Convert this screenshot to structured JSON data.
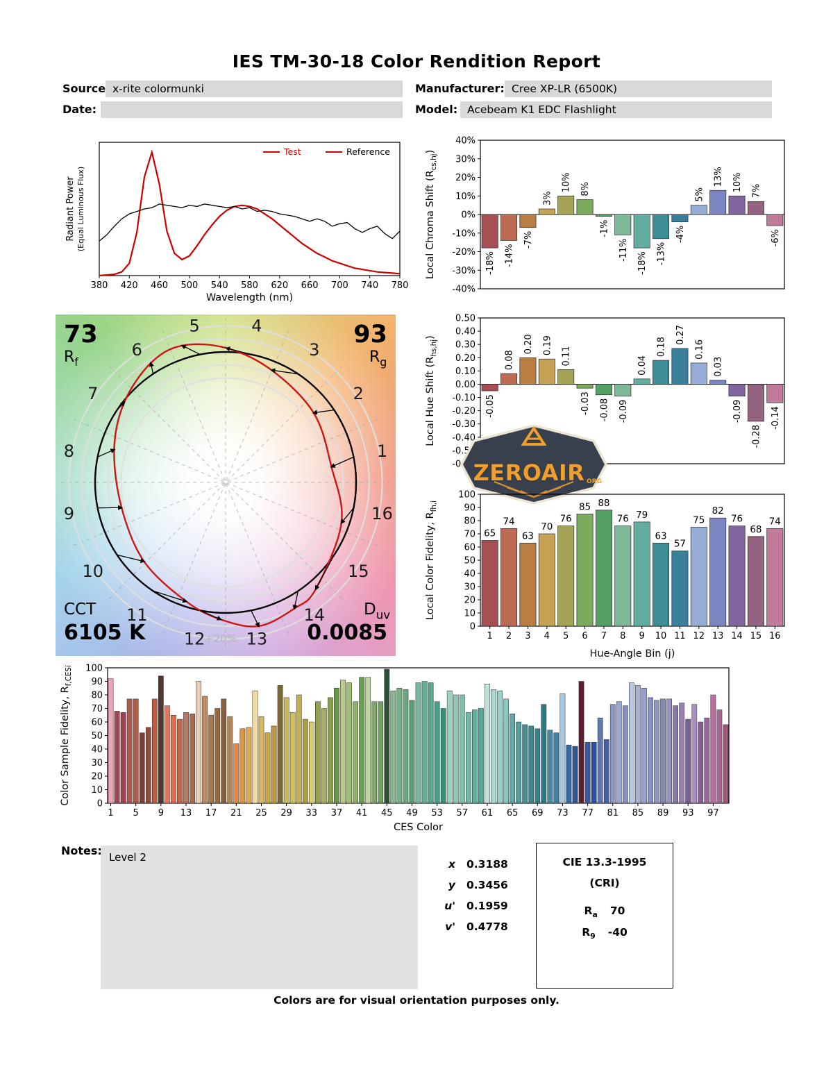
{
  "report": {
    "title": "IES TM-30-18 Color Rendition Report",
    "fields": {
      "source_label": "Source:",
      "source": "x-rite colormunki",
      "manufacturer_label": "Manufacturer:",
      "manufacturer": "Cree XP-LR (6500K)",
      "date_label": "Date:",
      "date": "",
      "model_label": "Model:",
      "model": "Acebeam K1 EDC Flashlight"
    },
    "watermark": {
      "name": "ZEROAIR",
      "tld": "ORG"
    },
    "notes_label": "Notes:",
    "notes": "Level 2",
    "chromaticity": [
      {
        "label": "x",
        "value": "0.3188"
      },
      {
        "label": "y",
        "value": "0.3456"
      },
      {
        "label": "u'",
        "value": "0.1959"
      },
      {
        "label": "v'",
        "value": "0.4778"
      }
    ],
    "cri": {
      "title": "CIE 13.3-1995",
      "subtitle": "(CRI)",
      "rows": [
        {
          "sym": "R",
          "sub": "a",
          "value": "70"
        },
        {
          "sym": "R",
          "sub": "9",
          "value": "-40"
        }
      ]
    },
    "footer": "Colors are for visual orientation purposes only."
  },
  "bin_colors": [
    "#a65055",
    "#bc6a52",
    "#b97e44",
    "#c5a156",
    "#a3a455",
    "#7cab5d",
    "#55a065",
    "#7db898",
    "#62ada0",
    "#3d8d96",
    "#3a7f9b",
    "#96aed6",
    "#7a85c1",
    "#80659f",
    "#93637f",
    "#c17b9b"
  ],
  "chart_data": [
    {
      "id": "spd",
      "type": "line",
      "xlabel": "Wavelength (nm)",
      "ylabel1": "Radiant Power",
      "ylabel2": "(Equal Luminous Flux)",
      "xlim": [
        380,
        780
      ],
      "xticks": [
        380,
        420,
        460,
        500,
        540,
        580,
        620,
        660,
        700,
        740,
        780
      ],
      "legend": [
        {
          "label": "Test",
          "line": "#cc0000",
          "text": "#cc0000"
        },
        {
          "label": "Reference",
          "line": "#cc0000",
          "text": "#000000"
        }
      ],
      "series": [
        {
          "name": "Test",
          "color": "#cc0000",
          "width": 2.2,
          "y": [
            0,
            0.005,
            0.01,
            0.03,
            0.1,
            0.35,
            0.8,
            1.0,
            0.74,
            0.36,
            0.18,
            0.13,
            0.16,
            0.24,
            0.33,
            0.41,
            0.48,
            0.53,
            0.56,
            0.57,
            0.56,
            0.54,
            0.5,
            0.46,
            0.41,
            0.36,
            0.31,
            0.26,
            0.22,
            0.18,
            0.15,
            0.12,
            0.1,
            0.08,
            0.06,
            0.05,
            0.04,
            0.03,
            0.025,
            0.02,
            0.015
          ]
        },
        {
          "name": "Reference",
          "color": "#000000",
          "width": 1.3,
          "y": [
            0.28,
            0.33,
            0.4,
            0.46,
            0.5,
            0.52,
            0.54,
            0.55,
            0.58,
            0.57,
            0.56,
            0.55,
            0.57,
            0.56,
            0.58,
            0.57,
            0.56,
            0.55,
            0.56,
            0.54,
            0.55,
            0.52,
            0.53,
            0.52,
            0.5,
            0.49,
            0.48,
            0.46,
            0.44,
            0.46,
            0.44,
            0.4,
            0.42,
            0.43,
            0.38,
            0.35,
            0.38,
            0.4,
            0.34,
            0.3,
            0.36
          ]
        }
      ]
    },
    {
      "id": "chroma_shift",
      "type": "bar",
      "ylabel": {
        "pre": "Local Chroma Shift (R",
        "sub": "cs,hj",
        "post": ")"
      },
      "ylim": [
        -40,
        40
      ],
      "yticks": [
        {
          "v": 40,
          "t": "40%"
        },
        {
          "v": 30,
          "t": "30%"
        },
        {
          "v": 20,
          "t": "20%"
        },
        {
          "v": 10,
          "t": "10%"
        },
        {
          "v": 0,
          "t": "0%"
        },
        {
          "v": -10,
          "t": "-10%"
        },
        {
          "v": -20,
          "t": "-20%"
        },
        {
          "v": -30,
          "t": "-30%"
        },
        {
          "v": -40,
          "t": "-40%"
        }
      ],
      "categories": [
        1,
        2,
        3,
        4,
        5,
        6,
        7,
        8,
        9,
        10,
        11,
        12,
        13,
        14,
        15,
        16
      ],
      "values": [
        -18,
        -14,
        -7,
        3,
        10,
        8,
        -1,
        -11,
        -18,
        -13,
        -4,
        5,
        13,
        10,
        7,
        -6
      ],
      "labels": [
        "-18%",
        "-14%",
        "-7%",
        "3%",
        "10%",
        "8%",
        "-1%",
        "-11%",
        "-18%",
        "-13%",
        "-4%",
        "5%",
        "13%",
        "10%",
        "7%",
        "-6%"
      ]
    },
    {
      "id": "hue_shift",
      "type": "bar",
      "ylabel": {
        "pre": "Local Hue Shift (R",
        "sub": "hs,hj",
        "post": ")"
      },
      "ylim": [
        -0.6,
        0.5
      ],
      "yticks": [
        {
          "v": 0.5,
          "t": "0.50"
        },
        {
          "v": 0.4,
          "t": "0.40"
        },
        {
          "v": 0.3,
          "t": "0.30"
        },
        {
          "v": 0.2,
          "t": "0.20"
        },
        {
          "v": 0.1,
          "t": "0.10"
        },
        {
          "v": 0,
          "t": "0.00"
        },
        {
          "v": -0.1,
          "t": "-0.10"
        },
        {
          "v": -0.2,
          "t": "-0.20"
        },
        {
          "v": -0.3,
          "t": "-0.30"
        },
        {
          "v": -0.4,
          "t": "-0.40"
        },
        {
          "v": -0.5,
          "t": "-0.50"
        },
        {
          "v": -0.6,
          "t": "-0.60"
        }
      ],
      "categories": [
        1,
        2,
        3,
        4,
        5,
        6,
        7,
        8,
        9,
        10,
        11,
        12,
        13,
        14,
        15,
        16
      ],
      "values": [
        -0.05,
        0.08,
        0.2,
        0.19,
        0.11,
        -0.03,
        -0.08,
        -0.09,
        0.04,
        0.18,
        0.27,
        0.16,
        0.03,
        -0.09,
        -0.28,
        -0.14
      ],
      "labels": [
        "-0.05",
        "0.08",
        "0.20",
        "0.19",
        "0.11",
        "-0.03",
        "-0.08",
        "-0.09",
        "0.04",
        "0.18",
        "0.27",
        "0.16",
        "0.03",
        "-0.09",
        "-0.28",
        "-0.14"
      ]
    },
    {
      "id": "local_fidelity",
      "type": "bar",
      "xlabel": "Hue-Angle Bin (j)",
      "ylabel": {
        "pre": "Local Color Fidelity, R",
        "sub": "fh,i",
        "post": ""
      },
      "ylim": [
        0,
        100
      ],
      "yticks": [
        {
          "v": 100,
          "t": "100"
        },
        {
          "v": 90,
          "t": "90"
        },
        {
          "v": 80,
          "t": "80"
        },
        {
          "v": 70,
          "t": "70"
        },
        {
          "v": 60,
          "t": "60"
        },
        {
          "v": 50,
          "t": "50"
        },
        {
          "v": 40,
          "t": "40"
        },
        {
          "v": 30,
          "t": "30"
        },
        {
          "v": 20,
          "t": "20"
        },
        {
          "v": 10,
          "t": "10"
        },
        {
          "v": 0,
          "t": "0"
        }
      ],
      "categories": [
        1,
        2,
        3,
        4,
        5,
        6,
        7,
        8,
        9,
        10,
        11,
        12,
        13,
        14,
        15,
        16
      ],
      "values": [
        65,
        74,
        63,
        70,
        76,
        85,
        88,
        76,
        79,
        63,
        57,
        75,
        82,
        76,
        68,
        74
      ],
      "labels": [
        "65",
        "74",
        "63",
        "70",
        "76",
        "85",
        "88",
        "76",
        "79",
        "63",
        "57",
        "75",
        "82",
        "76",
        "68",
        "74"
      ]
    },
    {
      "id": "ces",
      "type": "bar",
      "xlabel": "CES Color",
      "ylabel": {
        "pre": "Color Sample Fidelity, R",
        "sub": "f,CESi",
        "post": ""
      },
      "ylim": [
        0,
        100
      ],
      "yticks": [
        {
          "v": 100,
          "t": "100"
        },
        {
          "v": 90,
          "t": "90"
        },
        {
          "v": 80,
          "t": "80"
        },
        {
          "v": 70,
          "t": "70"
        },
        {
          "v": 60,
          "t": "60"
        },
        {
          "v": 50,
          "t": "50"
        },
        {
          "v": 40,
          "t": "40"
        },
        {
          "v": 30,
          "t": "30"
        },
        {
          "v": 20,
          "t": "20"
        },
        {
          "v": 10,
          "t": "10"
        },
        {
          "v": 0,
          "t": "0"
        }
      ],
      "xtick_labels": [
        1,
        5,
        9,
        13,
        17,
        21,
        25,
        29,
        33,
        37,
        41,
        45,
        49,
        53,
        57,
        61,
        65,
        69,
        73,
        77,
        81,
        85,
        89,
        93,
        97
      ],
      "values": [
        92,
        68,
        67,
        77,
        77,
        52,
        56,
        77,
        94,
        72,
        65,
        62,
        67,
        66,
        90,
        79,
        65,
        70,
        77,
        64,
        44,
        55,
        56,
        83,
        64,
        52,
        57,
        87,
        78,
        67,
        80,
        62,
        60,
        75,
        70,
        78,
        85,
        91,
        89,
        75,
        93,
        93,
        75,
        75,
        99,
        83,
        85,
        84,
        76,
        89,
        90,
        89,
        75,
        70,
        83,
        80,
        80,
        67,
        69,
        70,
        88,
        84,
        83,
        77,
        66,
        60,
        58,
        57,
        55,
        73,
        54,
        52,
        81,
        43,
        42,
        90,
        45,
        45,
        63,
        47,
        73,
        75,
        72,
        89,
        87,
        85,
        78,
        76,
        77,
        77,
        72,
        74,
        62,
        73,
        60,
        63,
        80,
        69,
        58
      ],
      "colors": [
        "#eba6b6",
        "#a04a55",
        "#9c4550",
        "#aa5a52",
        "#b05a48",
        "#7c4038",
        "#904c3c",
        "#c05a40",
        "#503830",
        "#e4785a",
        "#de6e50",
        "#cc6248",
        "#b87a62",
        "#a86a50",
        "#e9cdb4",
        "#c08a60",
        "#a87848",
        "#986840",
        "#886040",
        "#b08858",
        "#e08a4a",
        "#d89848",
        "#e0a850",
        "#f0dca6",
        "#d8b860",
        "#c8a848",
        "#b89840",
        "#7a6838",
        "#c8b858",
        "#d0c060",
        "#c0b050",
        "#a8a048",
        "#d8cc70",
        "#98a050",
        "#a8b060",
        "#88a048",
        "#6a9848",
        "#b8cc88",
        "#a0c078",
        "#90b068",
        "#6aa050",
        "#c0d8a0",
        "#80a868",
        "#70a060",
        "#2f4f38",
        "#88b890",
        "#78b088",
        "#68a880",
        "#58a078",
        "#78b8a0",
        "#68b098",
        "#58a890",
        "#48a088",
        "#389078",
        "#a0d0c0",
        "#90c8b8",
        "#80c0b0",
        "#70b8a8",
        "#60b0a0",
        "#50a898",
        "#c0e0d8",
        "#a8d8d0",
        "#98d0c8",
        "#88c8c0",
        "#60a8a8",
        "#50a0a0",
        "#489098",
        "#408890",
        "#388088",
        "#307880",
        "#4888a0",
        "#4080a0",
        "#a8c8e0",
        "#3868a0",
        "#305890",
        "#5a2030",
        "#3858a0",
        "#3050a0",
        "#6078b0",
        "#4860a8",
        "#8898c8",
        "#98a8d0",
        "#8890c0",
        "#b8c8e8",
        "#a8b0d8",
        "#98a0d0",
        "#8890c8",
        "#9098c0",
        "#8888b8",
        "#9890c0",
        "#8878a8",
        "#9880b0",
        "#786090",
        "#a890c0",
        "#886090",
        "#986898",
        "#b870a0",
        "#a86890",
        "#985878"
      ]
    },
    {
      "id": "cvg",
      "type": "color-vector-graphic",
      "rf": "73",
      "rf_sym": [
        "R",
        "f"
      ],
      "rg": "93",
      "rg_sym": [
        "R",
        "g"
      ],
      "cct_label": "CCT",
      "cct": "6105 K",
      "duv_sym": [
        "D",
        "uv"
      ],
      "duv": "0.0085",
      "ring_label": "+20%",
      "bins": [
        1,
        2,
        3,
        4,
        5,
        6,
        7,
        8,
        9,
        10,
        11,
        12,
        13,
        14,
        15,
        16
      ],
      "chroma_shift_pct": [
        -18,
        -14,
        -7,
        3,
        10,
        8,
        -1,
        -11,
        -18,
        -13,
        -4,
        5,
        13,
        10,
        7,
        -6
      ],
      "hue_shift_rad": [
        -0.05,
        0.08,
        0.2,
        0.19,
        0.11,
        -0.03,
        -0.08,
        -0.09,
        0.04,
        0.18,
        0.27,
        0.16,
        0.03,
        -0.09,
        -0.28,
        -0.14
      ]
    }
  ]
}
